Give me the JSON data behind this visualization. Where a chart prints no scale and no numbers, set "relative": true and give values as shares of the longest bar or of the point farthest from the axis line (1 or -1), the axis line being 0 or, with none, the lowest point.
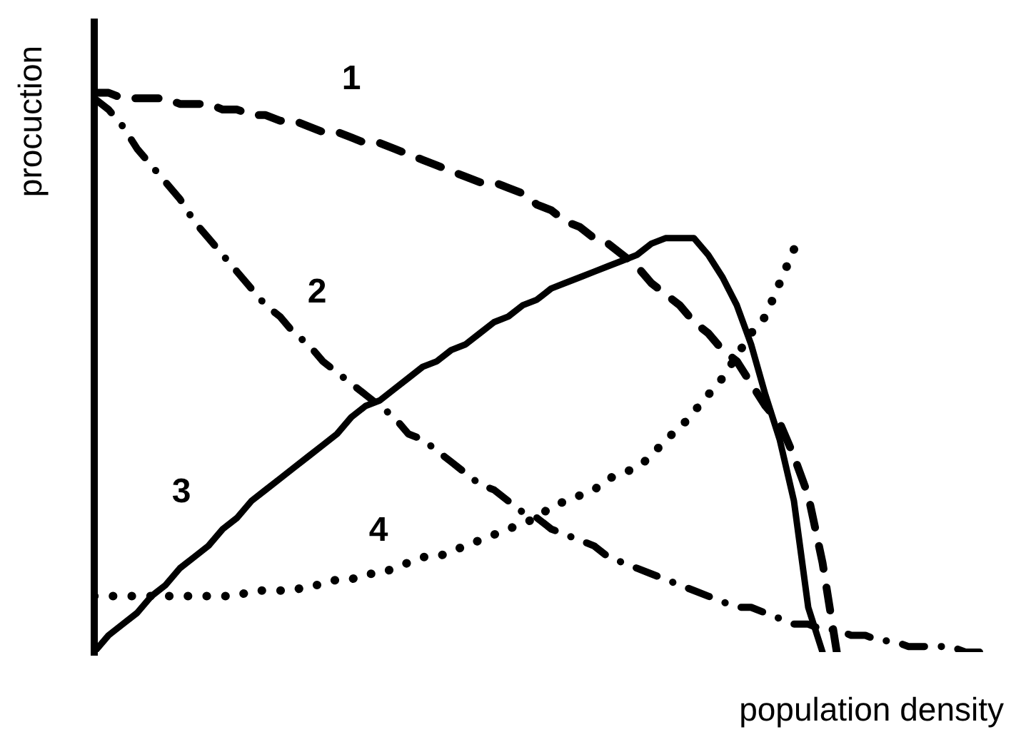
{
  "chart_data": {
    "type": "line",
    "xlabel": "population density",
    "ylabel": "procuction",
    "relative": true,
    "categories": [
      null,
      null,
      null,
      null,
      null,
      null,
      null,
      null,
      null,
      null,
      null,
      null,
      null,
      null,
      null,
      null,
      null,
      null,
      null,
      null,
      null,
      null,
      null,
      null,
      null,
      null,
      null,
      null,
      null,
      null,
      null,
      null,
      null,
      null,
      null,
      null,
      null,
      null,
      null,
      null,
      null,
      null,
      null,
      null,
      null,
      null,
      null,
      null,
      null,
      null,
      null,
      null,
      null,
      null,
      null,
      null,
      null,
      null,
      null,
      null,
      null,
      null,
      null,
      null,
      null,
      null
    ],
    "series": [
      {
        "name": "1",
        "color": "#000000",
        "line_style": "dashed",
        "values": [
          1.0,
          1.0,
          0.99,
          0.99,
          0.99,
          0.99,
          0.98,
          0.98,
          0.98,
          0.97,
          0.97,
          0.96,
          0.96,
          0.95,
          0.95,
          0.94,
          0.93,
          0.93,
          0.92,
          0.91,
          0.91,
          0.9,
          0.89,
          0.88,
          0.87,
          0.86,
          0.85,
          0.84,
          0.84,
          0.83,
          0.82,
          0.8,
          0.79,
          0.77,
          0.76,
          0.74,
          0.73,
          0.71,
          0.69,
          0.66,
          0.64,
          0.62,
          0.59,
          0.57,
          0.54,
          0.52,
          0.48,
          0.44,
          0.41,
          0.35,
          0.28,
          0.16,
          0.0,
          null,
          null,
          null,
          null,
          null,
          null,
          null,
          null,
          null,
          null,
          null,
          null,
          null
        ]
      },
      {
        "name": "2",
        "color": "#000000",
        "line_style": "dashdot",
        "values": [
          0.99,
          0.97,
          0.94,
          0.9,
          0.87,
          0.84,
          0.81,
          0.77,
          0.74,
          0.71,
          0.68,
          0.65,
          0.62,
          0.6,
          0.57,
          0.55,
          0.52,
          0.5,
          0.48,
          0.46,
          0.44,
          0.42,
          0.39,
          0.38,
          0.36,
          0.34,
          0.32,
          0.3,
          0.29,
          0.27,
          0.25,
          0.24,
          0.22,
          0.21,
          0.2,
          0.19,
          0.17,
          0.16,
          0.15,
          0.14,
          0.13,
          0.12,
          0.11,
          0.1,
          0.09,
          0.08,
          0.08,
          0.07,
          0.06,
          0.05,
          0.05,
          0.04,
          0.04,
          0.03,
          0.03,
          0.02,
          0.02,
          0.01,
          0.01,
          0.01,
          0.01,
          0.0,
          0.0,
          null,
          null,
          null
        ]
      },
      {
        "name": "3",
        "color": "#000000",
        "line_style": "solid",
        "values": [
          0.0,
          0.03,
          0.05,
          0.07,
          0.1,
          0.12,
          0.15,
          0.17,
          0.19,
          0.22,
          0.24,
          0.27,
          0.29,
          0.31,
          0.33,
          0.35,
          0.37,
          0.39,
          0.42,
          0.44,
          0.45,
          0.47,
          0.49,
          0.51,
          0.52,
          0.54,
          0.55,
          0.57,
          0.59,
          0.6,
          0.62,
          0.63,
          0.65,
          0.66,
          0.67,
          0.68,
          0.69,
          0.7,
          0.71,
          0.73,
          0.74,
          0.74,
          0.74,
          0.71,
          0.67,
          0.62,
          0.55,
          0.46,
          0.38,
          0.27,
          0.08,
          0.0,
          null,
          null,
          null,
          null,
          null,
          null,
          null,
          null,
          null,
          null,
          null,
          null,
          null,
          null
        ]
      },
      {
        "name": "4",
        "color": "#000000",
        "line_style": "dotted",
        "values": [
          0.1,
          0.1,
          0.1,
          0.1,
          0.1,
          0.1,
          0.1,
          0.1,
          0.1,
          0.1,
          0.1,
          0.11,
          0.11,
          0.11,
          0.11,
          0.12,
          0.12,
          0.13,
          0.13,
          0.14,
          0.14,
          0.15,
          0.16,
          0.17,
          0.17,
          0.18,
          0.19,
          0.2,
          0.21,
          0.22,
          0.23,
          0.24,
          0.26,
          0.27,
          0.28,
          0.29,
          0.31,
          0.32,
          0.33,
          0.35,
          0.38,
          0.4,
          0.43,
          0.46,
          0.49,
          0.53,
          0.57,
          0.6,
          0.66,
          0.72,
          null,
          null,
          null,
          null,
          null,
          null,
          null,
          null,
          null,
          null,
          null,
          null,
          null,
          null,
          null,
          null
        ]
      }
    ]
  }
}
